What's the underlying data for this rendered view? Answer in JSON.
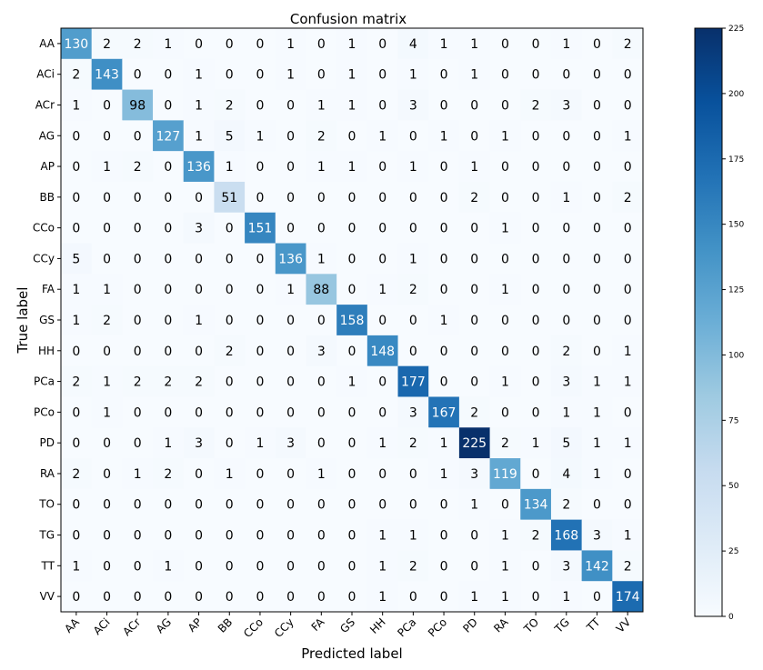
{
  "chart_data": {
    "type": "heatmap",
    "title": "Confusion matrix",
    "xlabel": "Predicted label",
    "ylabel": "True label",
    "labels": [
      "AA",
      "ACi",
      "ACr",
      "AG",
      "AP",
      "BB",
      "CCo",
      "CCy",
      "FA",
      "GS",
      "HH",
      "PCa",
      "PCo",
      "PD",
      "RA",
      "TO",
      "TG",
      "TT",
      "VV"
    ],
    "matrix": [
      [
        130,
        2,
        2,
        1,
        0,
        0,
        0,
        1,
        0,
        1,
        0,
        4,
        1,
        1,
        0,
        0,
        1,
        0,
        2
      ],
      [
        2,
        143,
        0,
        0,
        1,
        0,
        0,
        1,
        0,
        1,
        0,
        1,
        0,
        1,
        0,
        0,
        0,
        0,
        0
      ],
      [
        1,
        0,
        98,
        0,
        1,
        2,
        0,
        0,
        1,
        1,
        0,
        3,
        0,
        0,
        0,
        2,
        3,
        0,
        0
      ],
      [
        0,
        0,
        0,
        127,
        1,
        5,
        1,
        0,
        2,
        0,
        1,
        0,
        1,
        0,
        1,
        0,
        0,
        0,
        1
      ],
      [
        0,
        1,
        2,
        0,
        136,
        1,
        0,
        0,
        1,
        1,
        0,
        1,
        0,
        1,
        0,
        0,
        0,
        0,
        0
      ],
      [
        0,
        0,
        0,
        0,
        0,
        51,
        0,
        0,
        0,
        0,
        0,
        0,
        0,
        2,
        0,
        0,
        1,
        0,
        2
      ],
      [
        0,
        0,
        0,
        0,
        3,
        0,
        151,
        0,
        0,
        0,
        0,
        0,
        0,
        0,
        1,
        0,
        0,
        0,
        0
      ],
      [
        5,
        0,
        0,
        0,
        0,
        0,
        0,
        136,
        1,
        0,
        0,
        1,
        0,
        0,
        0,
        0,
        0,
        0,
        0
      ],
      [
        1,
        1,
        0,
        0,
        0,
        0,
        0,
        1,
        88,
        0,
        1,
        2,
        0,
        0,
        1,
        0,
        0,
        0,
        0
      ],
      [
        1,
        2,
        0,
        0,
        1,
        0,
        0,
        0,
        0,
        158,
        0,
        0,
        1,
        0,
        0,
        0,
        0,
        0,
        0
      ],
      [
        0,
        0,
        0,
        0,
        0,
        2,
        0,
        0,
        3,
        0,
        148,
        0,
        0,
        0,
        0,
        0,
        2,
        0,
        1
      ],
      [
        2,
        1,
        2,
        2,
        2,
        0,
        0,
        0,
        0,
        1,
        0,
        177,
        0,
        0,
        1,
        0,
        3,
        1,
        1
      ],
      [
        0,
        1,
        0,
        0,
        0,
        0,
        0,
        0,
        0,
        0,
        0,
        3,
        167,
        2,
        0,
        0,
        1,
        1,
        0
      ],
      [
        0,
        0,
        0,
        1,
        3,
        0,
        1,
        3,
        0,
        0,
        1,
        2,
        1,
        225,
        2,
        1,
        5,
        1,
        1
      ],
      [
        2,
        0,
        1,
        2,
        0,
        1,
        0,
        0,
        1,
        0,
        0,
        0,
        1,
        3,
        119,
        0,
        4,
        1,
        0
      ],
      [
        0,
        0,
        0,
        0,
        0,
        0,
        0,
        0,
        0,
        0,
        0,
        0,
        0,
        1,
        0,
        134,
        2,
        0,
        0
      ],
      [
        0,
        0,
        0,
        0,
        0,
        0,
        0,
        0,
        0,
        0,
        1,
        1,
        0,
        0,
        1,
        2,
        168,
        3,
        1
      ],
      [
        1,
        0,
        0,
        1,
        0,
        0,
        0,
        0,
        0,
        0,
        1,
        2,
        0,
        0,
        1,
        0,
        3,
        142,
        2
      ],
      [
        0,
        0,
        0,
        0,
        0,
        0,
        0,
        0,
        0,
        0,
        1,
        0,
        0,
        1,
        1,
        0,
        1,
        0,
        174
      ]
    ],
    "colorbar": {
      "colormap": "Blues",
      "min": 0,
      "max": 225,
      "ticks": [
        0,
        25,
        50,
        75,
        100,
        125,
        150,
        175,
        200,
        225
      ]
    }
  }
}
